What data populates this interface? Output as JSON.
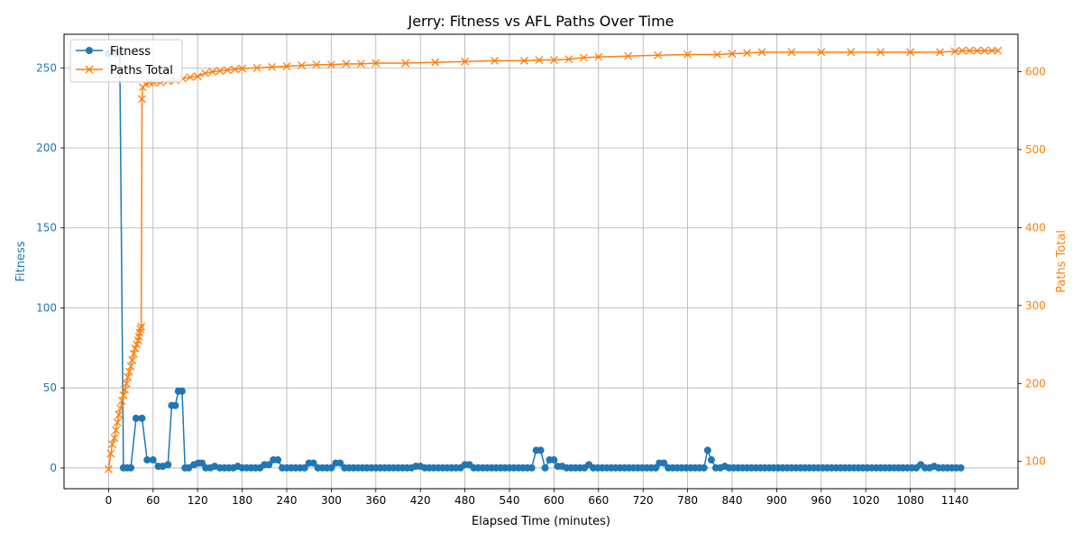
{
  "chart_data": {
    "type": "line",
    "title": "Jerry: Fitness vs AFL Paths Over Time",
    "xlabel": "Elapsed Time (minutes)",
    "y1label": "Fitness",
    "y2label": "Paths Total",
    "xlim": [
      -60,
      1225
    ],
    "y1lim": [
      -13,
      271
    ],
    "y2lim": [
      65,
      648
    ],
    "xticks": [
      "0",
      "60",
      "120",
      "180",
      "240",
      "300",
      "360",
      "420",
      "480",
      "540",
      "600",
      "660",
      "720",
      "780",
      "840",
      "900",
      "960",
      "1020",
      "1080",
      "1140"
    ],
    "y1ticks": [
      "0",
      "50",
      "100",
      "150",
      "200",
      "250"
    ],
    "y2ticks": [
      "100",
      "200",
      "300",
      "400",
      "500",
      "600"
    ],
    "grid": true,
    "legend_position": "top-left",
    "colors": {
      "fitness": "#1f77b4",
      "paths": "#ff7f0e",
      "grid": "#b0b0b0"
    },
    "series": [
      {
        "name": "Fitness",
        "axis": "left",
        "marker": "circle",
        "points": [
          [
            0,
            259
          ],
          [
            10,
            259
          ],
          [
            15,
            259
          ],
          [
            20,
            0
          ],
          [
            25,
            0
          ],
          [
            30,
            0
          ],
          [
            37,
            31
          ],
          [
            45,
            31
          ],
          [
            52,
            5
          ],
          [
            60,
            5
          ],
          [
            67,
            1
          ],
          [
            73,
            1
          ],
          [
            80,
            2
          ],
          [
            85,
            39
          ],
          [
            90,
            39
          ],
          [
            94,
            48
          ],
          [
            99,
            48
          ],
          [
            103,
            0
          ],
          [
            108,
            0
          ],
          [
            115,
            2
          ],
          [
            121,
            3
          ],
          [
            126,
            3
          ],
          [
            131,
            0
          ],
          [
            137,
            0
          ],
          [
            143,
            1
          ],
          [
            150,
            0
          ],
          [
            156,
            0
          ],
          [
            162,
            0
          ],
          [
            168,
            0
          ],
          [
            174,
            1
          ],
          [
            180,
            0
          ],
          [
            186,
            0
          ],
          [
            192,
            0
          ],
          [
            198,
            0
          ],
          [
            204,
            0
          ],
          [
            210,
            2
          ],
          [
            216,
            2
          ],
          [
            222,
            5
          ],
          [
            228,
            5
          ],
          [
            234,
            0
          ],
          [
            240,
            0
          ],
          [
            246,
            0
          ],
          [
            252,
            0
          ],
          [
            258,
            0
          ],
          [
            264,
            0
          ],
          [
            270,
            3
          ],
          [
            276,
            3
          ],
          [
            282,
            0
          ],
          [
            288,
            0
          ],
          [
            294,
            0
          ],
          [
            300,
            0
          ],
          [
            306,
            3
          ],
          [
            312,
            3
          ],
          [
            318,
            0
          ],
          [
            324,
            0
          ],
          [
            330,
            0
          ],
          [
            336,
            0
          ],
          [
            342,
            0
          ],
          [
            348,
            0
          ],
          [
            354,
            0
          ],
          [
            360,
            0
          ],
          [
            366,
            0
          ],
          [
            372,
            0
          ],
          [
            378,
            0
          ],
          [
            384,
            0
          ],
          [
            390,
            0
          ],
          [
            396,
            0
          ],
          [
            402,
            0
          ],
          [
            408,
            0
          ],
          [
            414,
            1
          ],
          [
            420,
            1
          ],
          [
            426,
            0
          ],
          [
            432,
            0
          ],
          [
            438,
            0
          ],
          [
            444,
            0
          ],
          [
            450,
            0
          ],
          [
            456,
            0
          ],
          [
            462,
            0
          ],
          [
            468,
            0
          ],
          [
            474,
            0
          ],
          [
            480,
            2
          ],
          [
            486,
            2
          ],
          [
            492,
            0
          ],
          [
            498,
            0
          ],
          [
            504,
            0
          ],
          [
            510,
            0
          ],
          [
            516,
            0
          ],
          [
            522,
            0
          ],
          [
            528,
            0
          ],
          [
            534,
            0
          ],
          [
            540,
            0
          ],
          [
            546,
            0
          ],
          [
            552,
            0
          ],
          [
            558,
            0
          ],
          [
            564,
            0
          ],
          [
            570,
            0
          ],
          [
            576,
            11
          ],
          [
            582,
            11
          ],
          [
            588,
            0
          ],
          [
            594,
            5
          ],
          [
            600,
            5
          ],
          [
            605,
            1
          ],
          [
            611,
            1
          ],
          [
            617,
            0
          ],
          [
            623,
            0
          ],
          [
            629,
            0
          ],
          [
            635,
            0
          ],
          [
            641,
            0
          ],
          [
            647,
            2
          ],
          [
            653,
            0
          ],
          [
            659,
            0
          ],
          [
            665,
            0
          ],
          [
            671,
            0
          ],
          [
            677,
            0
          ],
          [
            683,
            0
          ],
          [
            689,
            0
          ],
          [
            695,
            0
          ],
          [
            701,
            0
          ],
          [
            707,
            0
          ],
          [
            713,
            0
          ],
          [
            719,
            0
          ],
          [
            725,
            0
          ],
          [
            731,
            0
          ],
          [
            737,
            0
          ],
          [
            742,
            3
          ],
          [
            748,
            3
          ],
          [
            754,
            0
          ],
          [
            760,
            0
          ],
          [
            766,
            0
          ],
          [
            772,
            0
          ],
          [
            778,
            0
          ],
          [
            784,
            0
          ],
          [
            790,
            0
          ],
          [
            796,
            0
          ],
          [
            802,
            0
          ],
          [
            807,
            11
          ],
          [
            812,
            5
          ],
          [
            818,
            0
          ],
          [
            824,
            0
          ],
          [
            830,
            1
          ],
          [
            836,
            0
          ],
          [
            842,
            0
          ],
          [
            848,
            0
          ],
          [
            854,
            0
          ],
          [
            860,
            0
          ],
          [
            866,
            0
          ],
          [
            872,
            0
          ],
          [
            878,
            0
          ],
          [
            884,
            0
          ],
          [
            890,
            0
          ],
          [
            896,
            0
          ],
          [
            902,
            0
          ],
          [
            908,
            0
          ],
          [
            914,
            0
          ],
          [
            920,
            0
          ],
          [
            926,
            0
          ],
          [
            932,
            0
          ],
          [
            938,
            0
          ],
          [
            944,
            0
          ],
          [
            950,
            0
          ],
          [
            956,
            0
          ],
          [
            962,
            0
          ],
          [
            968,
            0
          ],
          [
            974,
            0
          ],
          [
            980,
            0
          ],
          [
            986,
            0
          ],
          [
            992,
            0
          ],
          [
            998,
            0
          ],
          [
            1004,
            0
          ],
          [
            1010,
            0
          ],
          [
            1016,
            0
          ],
          [
            1022,
            0
          ],
          [
            1028,
            0
          ],
          [
            1034,
            0
          ],
          [
            1040,
            0
          ],
          [
            1046,
            0
          ],
          [
            1052,
            0
          ],
          [
            1058,
            0
          ],
          [
            1064,
            0
          ],
          [
            1070,
            0
          ],
          [
            1076,
            0
          ],
          [
            1082,
            0
          ],
          [
            1088,
            0
          ],
          [
            1094,
            2
          ],
          [
            1100,
            0
          ],
          [
            1106,
            0
          ],
          [
            1112,
            1
          ],
          [
            1118,
            0
          ],
          [
            1124,
            0
          ],
          [
            1130,
            0
          ],
          [
            1136,
            0
          ],
          [
            1142,
            0
          ],
          [
            1148,
            0
          ]
        ]
      },
      {
        "name": "Paths Total",
        "axis": "right",
        "marker": "x",
        "points": [
          [
            0,
            90
          ],
          [
            3,
            110
          ],
          [
            5,
            122
          ],
          [
            8,
            130
          ],
          [
            10,
            140
          ],
          [
            12,
            150
          ],
          [
            14,
            160
          ],
          [
            16,
            168
          ],
          [
            18,
            178
          ],
          [
            20,
            185
          ],
          [
            22,
            192
          ],
          [
            24,
            200
          ],
          [
            26,
            208
          ],
          [
            28,
            215
          ],
          [
            30,
            222
          ],
          [
            32,
            230
          ],
          [
            34,
            238
          ],
          [
            36,
            245
          ],
          [
            38,
            250
          ],
          [
            40,
            255
          ],
          [
            41,
            260
          ],
          [
            42,
            265
          ],
          [
            43,
            270
          ],
          [
            44,
            273
          ],
          [
            45,
            565
          ],
          [
            46,
            580
          ],
          [
            50,
            584
          ],
          [
            55,
            586
          ],
          [
            60,
            586
          ],
          [
            70,
            586
          ],
          [
            80,
            588
          ],
          [
            90,
            589
          ],
          [
            100,
            591
          ],
          [
            110,
            593
          ],
          [
            120,
            594
          ],
          [
            130,
            598
          ],
          [
            140,
            600
          ],
          [
            150,
            601
          ],
          [
            160,
            602
          ],
          [
            170,
            603
          ],
          [
            180,
            604
          ],
          [
            200,
            605
          ],
          [
            220,
            606
          ],
          [
            240,
            607
          ],
          [
            260,
            608
          ],
          [
            280,
            609
          ],
          [
            300,
            609
          ],
          [
            320,
            610
          ],
          [
            340,
            610
          ],
          [
            360,
            611
          ],
          [
            400,
            611
          ],
          [
            440,
            612
          ],
          [
            480,
            613
          ],
          [
            520,
            614
          ],
          [
            560,
            614
          ],
          [
            580,
            615
          ],
          [
            600,
            615
          ],
          [
            620,
            616
          ],
          [
            640,
            618
          ],
          [
            660,
            619
          ],
          [
            700,
            620
          ],
          [
            740,
            621
          ],
          [
            780,
            622
          ],
          [
            820,
            622
          ],
          [
            840,
            623
          ],
          [
            860,
            624
          ],
          [
            880,
            625
          ],
          [
            920,
            625
          ],
          [
            960,
            625
          ],
          [
            1000,
            625
          ],
          [
            1040,
            625
          ],
          [
            1080,
            625
          ],
          [
            1120,
            625
          ],
          [
            1140,
            626
          ],
          [
            1150,
            627
          ],
          [
            1160,
            627
          ],
          [
            1170,
            627
          ],
          [
            1180,
            627
          ],
          [
            1190,
            627
          ],
          [
            1198,
            627
          ]
        ]
      }
    ]
  }
}
